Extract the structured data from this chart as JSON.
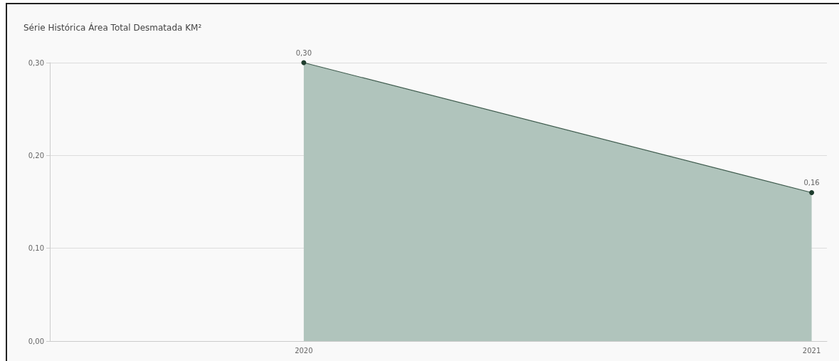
{
  "chart_data": {
    "type": "area",
    "title": "Série Histórica Área Total Desmatada KM²",
    "x": [
      2020,
      2021
    ],
    "series": [
      {
        "color": "#b0c4bc",
        "values": [
          0.3,
          0.16
        ],
        "value_labels": [
          "0,30",
          "0,16"
        ]
      }
    ],
    "xlim": [
      2019.5,
      2021.03
    ],
    "xticks": [
      2020,
      2021
    ],
    "ylim": [
      0,
      0.3
    ],
    "yticks": [
      {
        "value": 0,
        "label": "0,00"
      },
      {
        "value": 0.1,
        "label": "0,10"
      },
      {
        "value": 0.2,
        "label": "0,20"
      },
      {
        "value": 0.3,
        "label": "0,30"
      }
    ],
    "grid": "y",
    "marker": "circle"
  }
}
